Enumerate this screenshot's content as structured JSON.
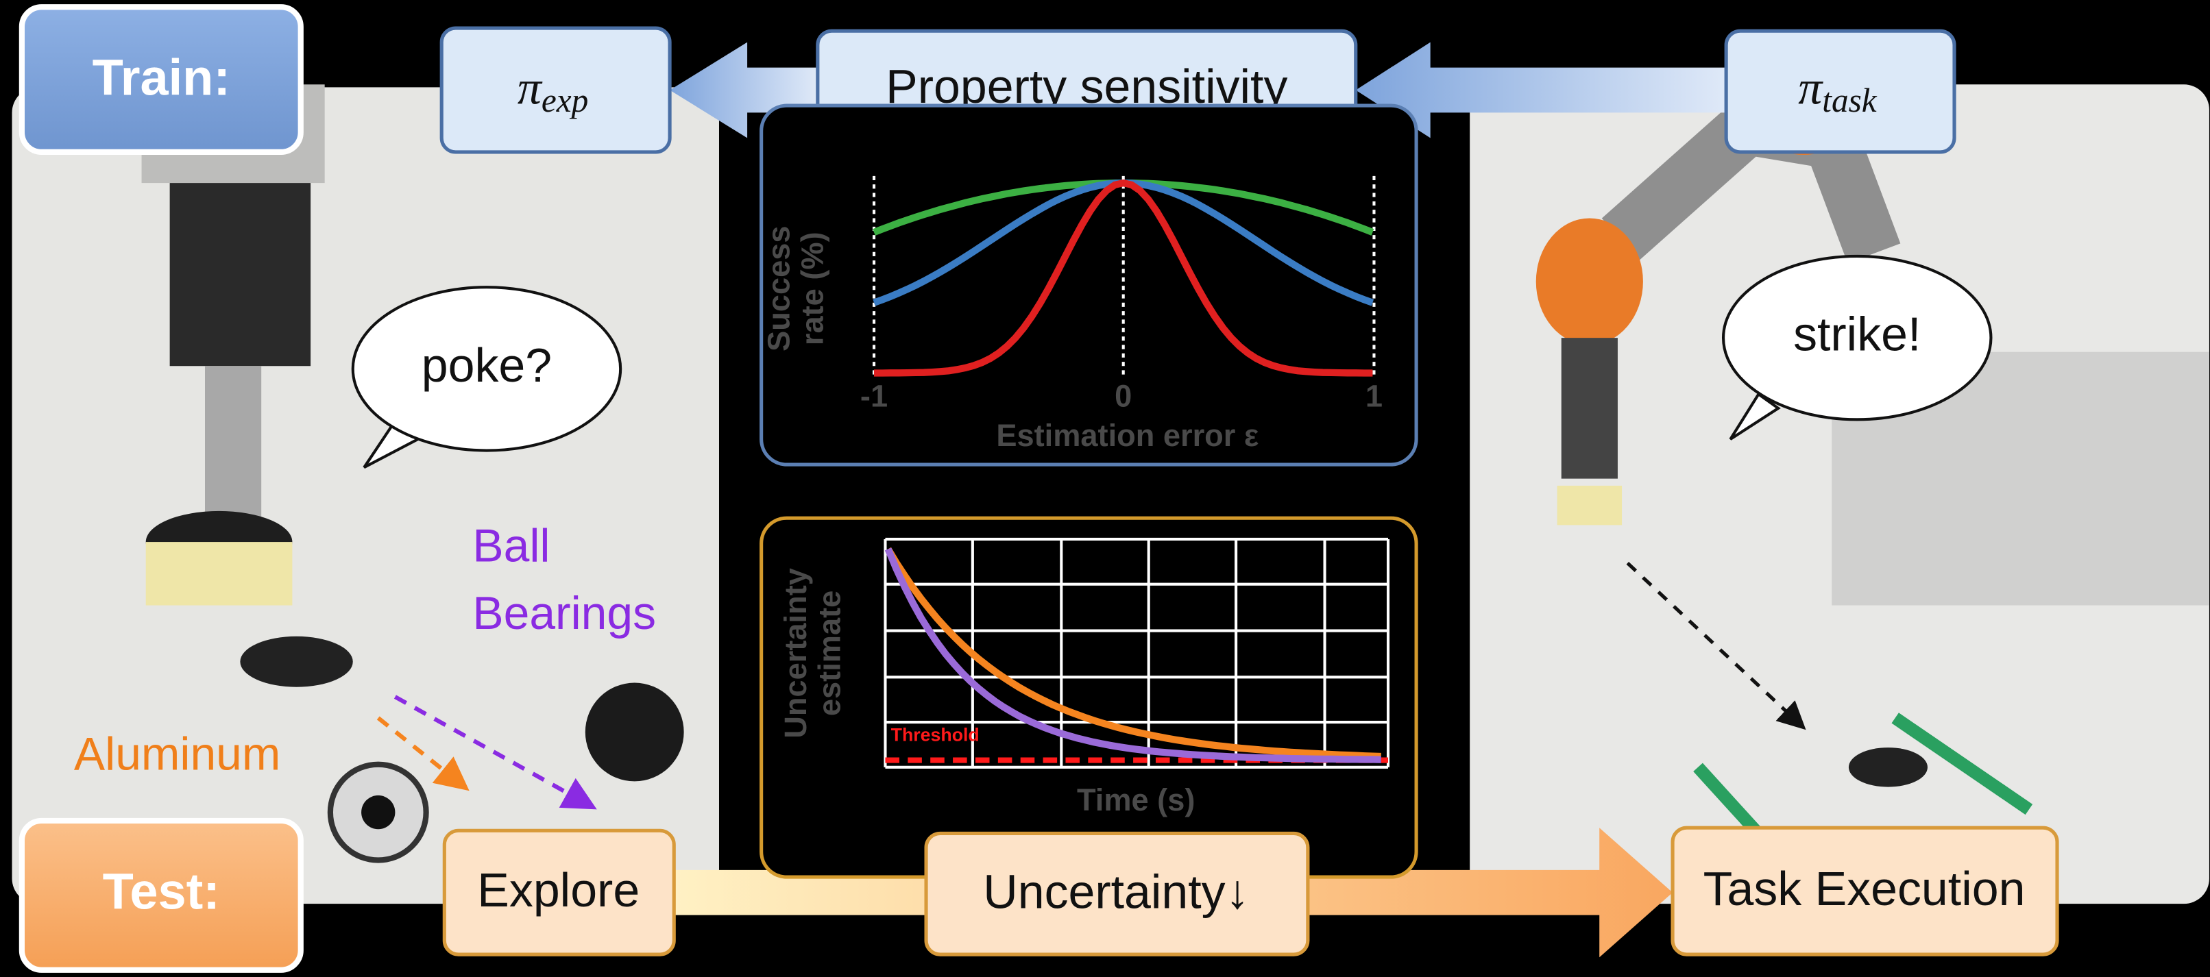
{
  "train_label": "Train:",
  "test_label": "Test:",
  "policies": {
    "explore": {
      "symbol": "π",
      "subscript": "exp"
    },
    "task": {
      "symbol": "π",
      "subscript": "task"
    }
  },
  "property_sensitivity": "Property sensitivity",
  "speech": {
    "left": "poke?",
    "right": "strike!"
  },
  "materials": {
    "ball_bearings": [
      "Ball",
      "Bearings"
    ],
    "aluminum": "Aluminum"
  },
  "stages": [
    "Explore",
    "Uncertainty↓",
    "Task Execution"
  ],
  "sensitivity_plot": {
    "ylabel": [
      "Success",
      "rate (%)"
    ],
    "xticks": [
      "-1",
      "0",
      "1"
    ],
    "xlabel": "Estimation error ε"
  },
  "uncertainty_plot": {
    "ylabel": [
      "Uncertainty",
      "estimate"
    ],
    "threshold": "Threshold",
    "xlabel": "Time (s)"
  }
}
